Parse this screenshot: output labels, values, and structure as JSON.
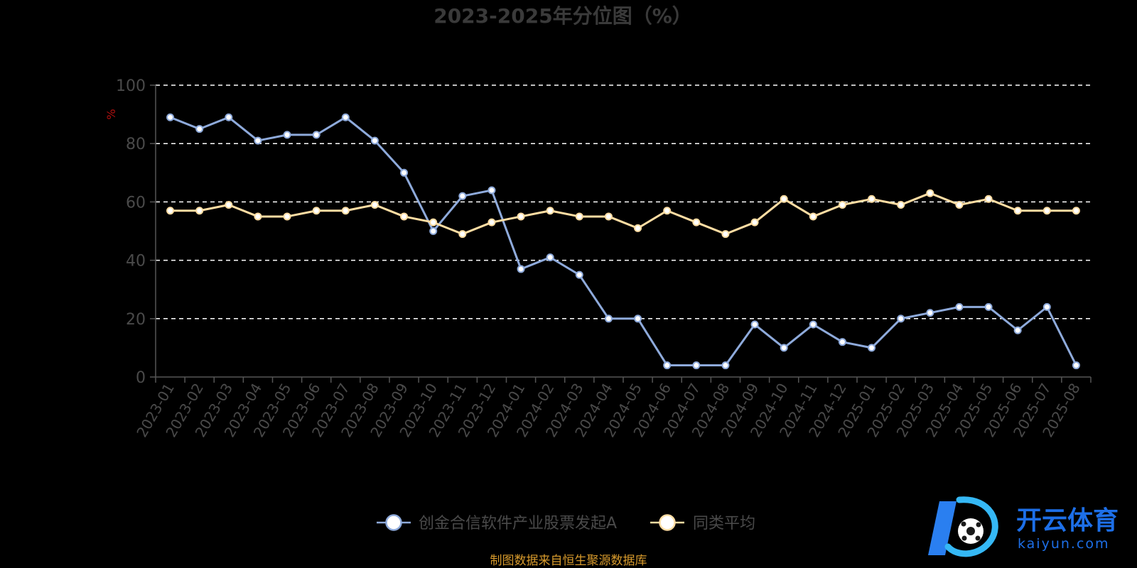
{
  "chart_data": {
    "type": "line",
    "title": "2023-2025年分位图（%）",
    "ylabel": "%",
    "xlabel": "",
    "ylim": [
      0,
      100
    ],
    "yticks": [
      0,
      20,
      40,
      60,
      80,
      100
    ],
    "grid": true,
    "legend_position": "bottom",
    "categories": [
      "2023-01",
      "2023-02",
      "2023-03",
      "2023-04",
      "2023-05",
      "2023-06",
      "2023-07",
      "2023-08",
      "2023-09",
      "2023-10",
      "2023-11",
      "2023-12",
      "2024-01",
      "2024-02",
      "2024-03",
      "2024-04",
      "2024-05",
      "2024-06",
      "2024-07",
      "2024-08",
      "2024-09",
      "2024-10",
      "2024-11",
      "2024-12",
      "2025-01",
      "2025-02",
      "2025-03",
      "2025-04",
      "2025-05",
      "2025-06",
      "2025-07",
      "2025-08"
    ],
    "series": [
      {
        "name": "创金合信软件产业股票发起A",
        "color": "#8eaadb",
        "values": [
          89,
          85,
          89,
          81,
          83,
          83,
          89,
          81,
          70,
          50,
          62,
          64,
          37,
          41,
          35,
          20,
          20,
          4,
          4,
          4,
          18,
          10,
          18,
          12,
          10,
          20,
          22,
          24,
          24,
          16,
          24,
          4
        ]
      },
      {
        "name": "同类平均",
        "color": "#ffdda3",
        "values": [
          57,
          57,
          59,
          55,
          55,
          57,
          57,
          59,
          55,
          53,
          49,
          53,
          55,
          57,
          55,
          55,
          51,
          57,
          53,
          49,
          53,
          61,
          55,
          59,
          61,
          59,
          63,
          59,
          61,
          57,
          57,
          57
        ]
      }
    ]
  },
  "source_note": "制图数据来自恒生聚源数据库",
  "watermark": {
    "cn_text": "开云体育",
    "en_text": "kaiyun.com"
  }
}
